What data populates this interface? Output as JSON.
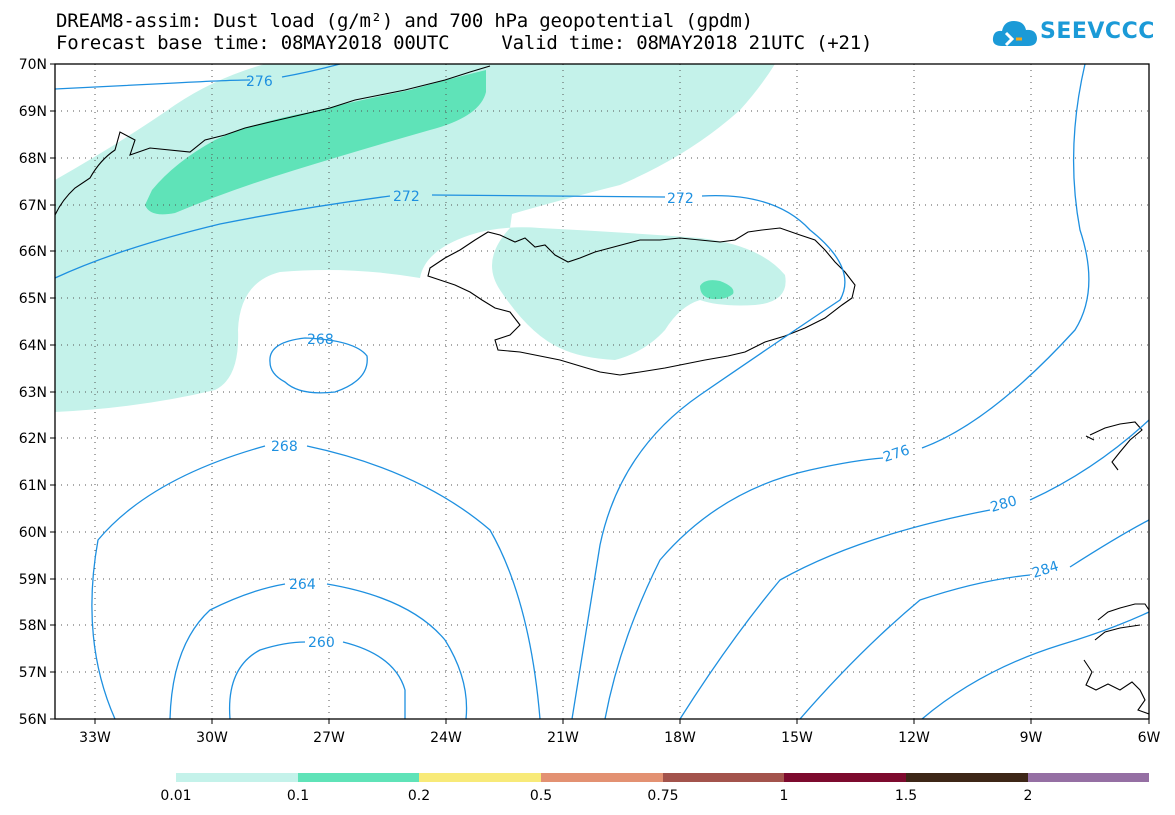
{
  "title": {
    "line1": "DREAM8-assim: Dust load (g/m²) and 700 hPa geopotential (gpdm)",
    "forecast": "Forecast base time: 08MAY2018 00UTC",
    "valid": "Valid time: 08MAY2018 21UTC (+21)"
  },
  "logo": {
    "text": "SEEVCCC",
    "color": "#1b9ad7",
    "icon": "cloud-icon"
  },
  "map": {
    "lat_labels": [
      "70N",
      "69N",
      "68N",
      "67N",
      "66N",
      "65N",
      "64N",
      "63N",
      "62N",
      "61N",
      "60N",
      "59N",
      "58N",
      "57N",
      "56N"
    ],
    "lon_labels": [
      "33W",
      "30W",
      "27W",
      "24W",
      "21W",
      "18W",
      "15W",
      "12W",
      "9W",
      "6W"
    ],
    "contour_color": "#1e90e0",
    "contour_labels": [
      "276",
      "272",
      "272",
      "268",
      "268",
      "264",
      "260",
      "276",
      "280",
      "284"
    ]
  },
  "colorbar": {
    "labels": [
      "0.01",
      "0.1",
      "0.2",
      "0.5",
      "0.75",
      "1",
      "1.5",
      "2"
    ],
    "colors": [
      "#c4f2ea",
      "#5fe3b8",
      "#f8ea78",
      "#e39172",
      "#a3534c",
      "#7d0a2e",
      "#3d2617",
      "#956fa3"
    ]
  }
}
